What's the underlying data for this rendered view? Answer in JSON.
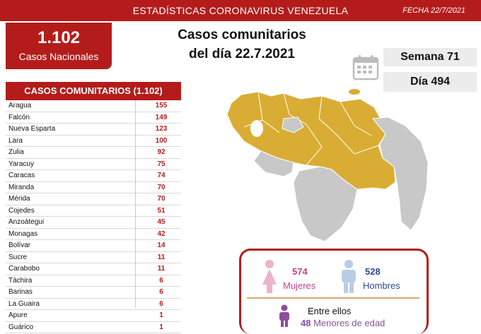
{
  "header": {
    "title": "ESTADÍSTICAS CORONAVIRUS VENEZUELA",
    "date": "FECHA 22/7/2021"
  },
  "national": {
    "count": "1.102",
    "label": "Casos Nacionales"
  },
  "headline": {
    "line1": "Casos comunitarios",
    "line2": "del día 22.7.2021"
  },
  "week": "Semana 71",
  "day": "Día 494",
  "table": {
    "title": "CASOS COMUNITARIOS (1.102)",
    "rows": [
      {
        "state": "Aragua",
        "value": "155"
      },
      {
        "state": "Falcón",
        "value": "149"
      },
      {
        "state": "Nueva Esparta",
        "value": "123"
      },
      {
        "state": "Lara",
        "value": "100"
      },
      {
        "state": "Zulia",
        "value": "92"
      },
      {
        "state": "Yaracuy",
        "value": "75"
      },
      {
        "state": "Caracas",
        "value": "74"
      },
      {
        "state": "Miranda",
        "value": "70"
      },
      {
        "state": "Mérida",
        "value": "70"
      },
      {
        "state": "Cojedes",
        "value": "51"
      },
      {
        "state": "Anzoátegui",
        "value": "45"
      },
      {
        "state": "Monagas",
        "value": "42"
      },
      {
        "state": "Bolívar",
        "value": "14"
      },
      {
        "state": "Sucre",
        "value": "11"
      },
      {
        "state": "Carabobo",
        "value": "11"
      },
      {
        "state": "Táchira",
        "value": "6"
      },
      {
        "state": "Barinas",
        "value": "6"
      },
      {
        "state": "La Guaira",
        "value": "6"
      },
      {
        "state": "Apure",
        "value": "1"
      },
      {
        "state": "Guárico",
        "value": "1"
      }
    ]
  },
  "gender": {
    "women_count": "574",
    "women_label": "Mujeres",
    "men_count": "528",
    "men_label": "Hombres",
    "among_label": "Entre ellos",
    "minors_count": "48",
    "minors_label": "Menores de edad"
  },
  "colors": {
    "brand_red": "#b41c1c",
    "map_affected": "#d9ad33",
    "map_unaffected": "#c8c8c8",
    "women": "#c4428a",
    "men": "#2c4a8f",
    "minors": "#8a4fa0"
  }
}
